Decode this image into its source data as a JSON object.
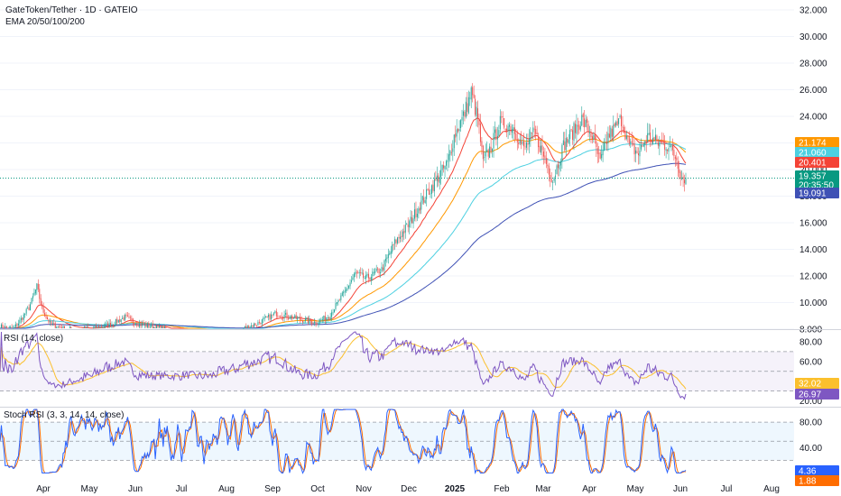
{
  "header": {
    "symbol_title": "GateToken/Tether · 1D · GATEIO",
    "ema_legend": "EMA 20/50/100/200"
  },
  "colors": {
    "up": "#26a69a",
    "down": "#ef5350",
    "ema20": "#f44336",
    "ema50": "#ff9800",
    "ema100": "#4dd0e1",
    "ema200": "#3f51b5",
    "rsi_line": "#7e57c2",
    "rsi_ma": "#fbc02d",
    "stoch_k": "#2962ff",
    "stoch_d": "#ff6d00",
    "last_price": "#089981"
  },
  "chart_data": [
    {
      "type": "candlestick",
      "title": "GateToken/Tether · 1D · GATEIO",
      "x_tick_labels": [
        "Apr",
        "May",
        "Jun",
        "Jul",
        "Aug",
        "Sep",
        "Oct",
        "Nov",
        "Dec",
        "2025",
        "Feb",
        "Mar",
        "Apr",
        "May",
        "Jun",
        "Jul",
        "Aug"
      ],
      "y_tick_labels": [
        "32.000",
        "30.000",
        "28.000",
        "26.000",
        "24.000",
        "22.000",
        "20.000",
        "18.000",
        "16.000",
        "14.000",
        "12.000",
        "10.000",
        "8.000"
      ],
      "ylim": [
        8.0,
        32.0
      ],
      "price_keypoints": [
        {
          "day": 0,
          "close": 8.2
        },
        {
          "day": 10,
          "close": 8.0
        },
        {
          "day": 15,
          "close": 8.6
        },
        {
          "day": 22,
          "close": 9.6
        },
        {
          "day": 28,
          "close": 11.2
        },
        {
          "day": 32,
          "close": 9.5
        },
        {
          "day": 38,
          "close": 8.4
        },
        {
          "day": 50,
          "close": 8.0
        },
        {
          "day": 70,
          "close": 8.0
        },
        {
          "day": 85,
          "close": 8.4
        },
        {
          "day": 95,
          "close": 8.9
        },
        {
          "day": 105,
          "close": 8.4
        },
        {
          "day": 130,
          "close": 7.9
        },
        {
          "day": 160,
          "close": 7.6
        },
        {
          "day": 180,
          "close": 7.9
        },
        {
          "day": 195,
          "close": 8.4
        },
        {
          "day": 210,
          "close": 9.2
        },
        {
          "day": 225,
          "close": 8.8
        },
        {
          "day": 240,
          "close": 8.5
        },
        {
          "day": 250,
          "close": 9.0
        },
        {
          "day": 262,
          "close": 10.8
        },
        {
          "day": 270,
          "close": 12.2
        },
        {
          "day": 278,
          "close": 11.8
        },
        {
          "day": 290,
          "close": 12.5
        },
        {
          "day": 300,
          "close": 14.5
        },
        {
          "day": 310,
          "close": 15.8
        },
        {
          "day": 320,
          "close": 17.5
        },
        {
          "day": 330,
          "close": 19.0
        },
        {
          "day": 340,
          "close": 20.5
        },
        {
          "day": 345,
          "close": 22.5
        },
        {
          "day": 352,
          "close": 24.0
        },
        {
          "day": 358,
          "close": 25.8
        },
        {
          "day": 363,
          "close": 23.8
        },
        {
          "day": 367,
          "close": 20.5
        },
        {
          "day": 372,
          "close": 21.5
        },
        {
          "day": 380,
          "close": 23.5
        },
        {
          "day": 390,
          "close": 23.2
        },
        {
          "day": 398,
          "close": 21.5
        },
        {
          "day": 406,
          "close": 22.8
        },
        {
          "day": 414,
          "close": 20.8
        },
        {
          "day": 420,
          "close": 19.2
        },
        {
          "day": 428,
          "close": 21.8
        },
        {
          "day": 435,
          "close": 22.8
        },
        {
          "day": 442,
          "close": 23.8
        },
        {
          "day": 450,
          "close": 22.5
        },
        {
          "day": 456,
          "close": 20.5
        },
        {
          "day": 462,
          "close": 22.5
        },
        {
          "day": 468,
          "close": 23.2
        },
        {
          "day": 472,
          "close": 23.8
        },
        {
          "day": 478,
          "close": 21.8
        },
        {
          "day": 485,
          "close": 21.2
        },
        {
          "day": 492,
          "close": 22.5
        },
        {
          "day": 500,
          "close": 22.0
        },
        {
          "day": 508,
          "close": 21.8
        },
        {
          "day": 514,
          "close": 20.8
        },
        {
          "day": 518,
          "close": 19.4
        },
        {
          "day": 521,
          "close": 19.357
        }
      ],
      "ema_legend": "EMA 20/50/100/200",
      "right_badges": [
        {
          "value": "21.174",
          "color": "#ff9800"
        },
        {
          "value": "21.060",
          "color": "#4dd0e1"
        },
        {
          "value": "20.401",
          "color": "#f44336"
        },
        {
          "value": "19.357",
          "color": "#089981"
        },
        {
          "value": "20:35:50",
          "color": "#089981"
        },
        {
          "value": "19.091",
          "color": "#3f51b5"
        }
      ]
    },
    {
      "type": "line",
      "title": "RSI (14, close)",
      "y_tick_labels": [
        "80.00",
        "60.00",
        "40.00",
        "20.00"
      ],
      "ylim": [
        15,
        90
      ],
      "bands": [
        70,
        50,
        30
      ],
      "right_badges": [
        {
          "value": "32.02",
          "color": "#fbc02d"
        },
        {
          "value": "26.97",
          "color": "#7e57c2"
        }
      ]
    },
    {
      "type": "line",
      "title": "Stoch RSI (3, 3, 14, 14, close)",
      "y_tick_labels": [
        "80.00",
        "40.00"
      ],
      "ylim": [
        -5,
        100
      ],
      "bands": [
        80,
        50,
        20
      ],
      "right_badges": [
        {
          "value": "4.36",
          "color": "#2962ff"
        },
        {
          "value": "1.88",
          "color": "#ff6d00"
        }
      ]
    }
  ]
}
